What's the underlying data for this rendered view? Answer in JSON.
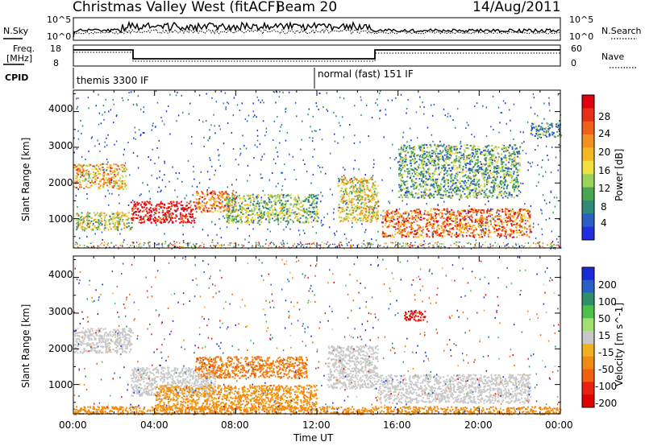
{
  "header": {
    "title": "Christmas Valley West (fitACF)",
    "beam": "Beam 20",
    "date": "14/Aug/2011"
  },
  "top_panels": {
    "nsky_label": "N.Sky",
    "nsky_ticks": [
      "10^5",
      "10^0"
    ],
    "nsearch_label": "N.Search",
    "nsearch_ticks": [
      "10^5",
      "10^0"
    ],
    "freq_label_line1": "Freq.",
    "freq_label_line2": "[MHz]",
    "freq_ticks": [
      "18",
      "8"
    ],
    "nave_label": "Nave",
    "nave_ticks": [
      "60",
      "0"
    ],
    "cpid_label": "CPID",
    "cpid_1": "themis 3300 IF",
    "cpid_2": "normal (fast) 151 IF"
  },
  "x_axis": {
    "ticks": [
      "00:00",
      "04:00",
      "08:00",
      "12:00",
      "16:00",
      "20:00",
      "00:00"
    ],
    "label": "Time UT"
  },
  "power_panel": {
    "ylabel": "Slant Range [km]",
    "yticks": [
      "4000",
      "3000",
      "2000",
      "1000"
    ],
    "colorbar_label": "Power [dB]",
    "colorbar_ticks": [
      "28",
      "24",
      "20",
      "16",
      "12",
      "8",
      "4"
    ],
    "colors": [
      "#1f2fe0",
      "#2b5fc4",
      "#2f8a7a",
      "#4aa450",
      "#9bd35a",
      "#f0e040",
      "#f4b820",
      "#f39020",
      "#f06018",
      "#e83018",
      "#e00010"
    ]
  },
  "velocity_panel": {
    "ylabel": "Slant Range [km]",
    "yticks": [
      "4000",
      "3000",
      "2000",
      "1000"
    ],
    "colorbar_label": "Velocity [m s^-1]",
    "colorbar_ticks": [
      "200",
      "100",
      "50",
      "15",
      "-15",
      "-50",
      "-100",
      "-200"
    ],
    "colors": [
      "#1a2ad8",
      "#2860c8",
      "#2f8f6a",
      "#4cc24c",
      "#a0e070",
      "#c8c8c8",
      "#f2b020",
      "#f08a10",
      "#f06010",
      "#e82010",
      "#e00000"
    ]
  },
  "chart_data": {
    "type": "heatmap",
    "x_range_hours": [
      0,
      24
    ],
    "y_range_km": [
      180,
      4600
    ],
    "power_regions": [
      {
        "t0": 0.0,
        "t1": 2.6,
        "r0": 1850,
        "r1": 2550,
        "power": 18
      },
      {
        "t0": 0.1,
        "t1": 2.9,
        "r0": 700,
        "r1": 1200,
        "power": 14
      },
      {
        "t0": 2.8,
        "t1": 6.0,
        "r0": 900,
        "r1": 1500,
        "power": 28
      },
      {
        "t0": 6.0,
        "t1": 8.0,
        "r0": 1200,
        "r1": 1800,
        "power": 22
      },
      {
        "t0": 7.5,
        "t1": 12.0,
        "r0": 900,
        "r1": 1700,
        "power": 12
      },
      {
        "t0": 13.0,
        "t1": 15.0,
        "r0": 900,
        "r1": 2200,
        "power": 16
      },
      {
        "t0": 15.2,
        "t1": 22.5,
        "r0": 500,
        "r1": 1300,
        "power": 22
      },
      {
        "t0": 16.0,
        "t1": 22.0,
        "r0": 1600,
        "r1": 3100,
        "power": 10
      },
      {
        "t0": 22.5,
        "t1": 24.0,
        "r0": 3300,
        "r1": 3700,
        "power": 8
      }
    ],
    "velocity_regions": [
      {
        "t0": 0.0,
        "t1": 2.9,
        "r0": 1900,
        "r1": 2600,
        "velocity": 0
      },
      {
        "t0": 2.8,
        "t1": 7.0,
        "r0": 700,
        "r1": 1500,
        "velocity": 0
      },
      {
        "t0": 6.0,
        "t1": 11.5,
        "r0": 1200,
        "r1": 1800,
        "velocity": -70
      },
      {
        "t0": 4.0,
        "t1": 12.0,
        "r0": 300,
        "r1": 1000,
        "velocity": -40
      },
      {
        "t0": 12.5,
        "t1": 15.0,
        "r0": 900,
        "r1": 2100,
        "velocity": 0
      },
      {
        "t0": 15.0,
        "t1": 22.5,
        "r0": 500,
        "r1": 1300,
        "velocity": 0
      },
      {
        "t0": 16.3,
        "t1": 17.3,
        "r0": 2800,
        "r1": 3100,
        "velocity": -200
      },
      {
        "t0": 0.0,
        "t1": 24.0,
        "r0": 180,
        "r1": 400,
        "velocity": -60
      }
    ]
  }
}
